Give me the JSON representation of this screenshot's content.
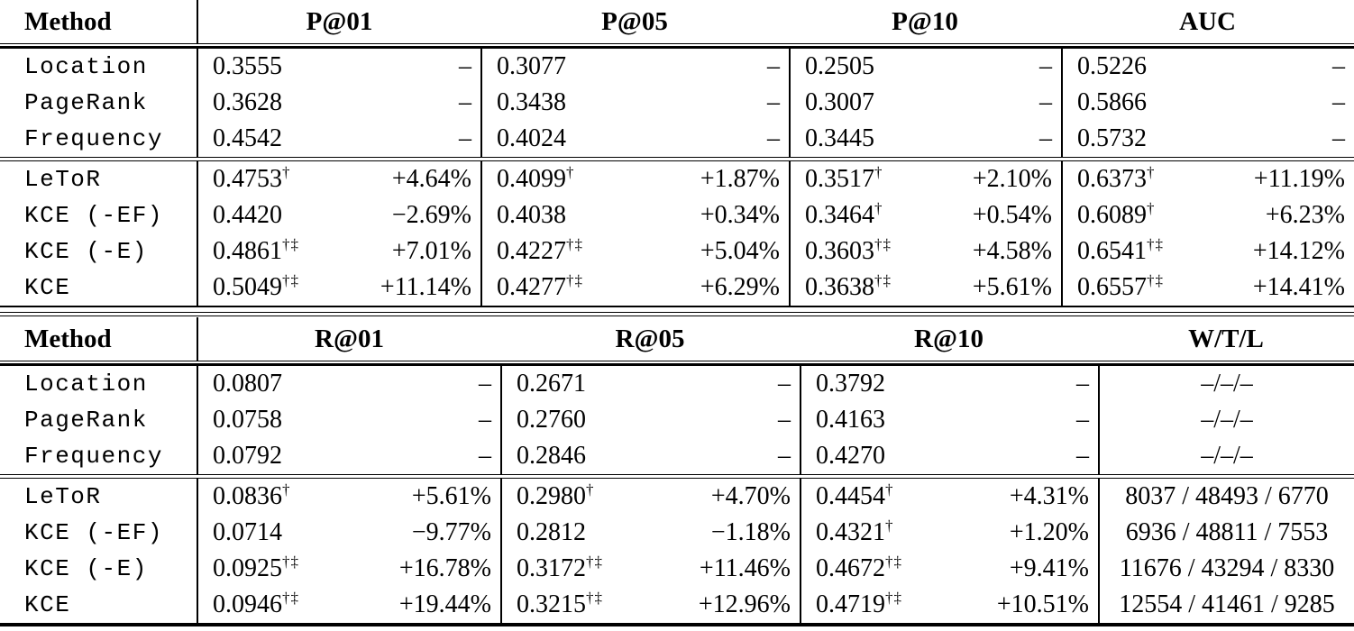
{
  "tables": [
    {
      "header": {
        "method": "Method",
        "cols": [
          "P@01",
          "P@05",
          "P@10",
          "AUC"
        ]
      },
      "baselines": [
        {
          "method": "Location",
          "cells": [
            {
              "v": "0.3555",
              "d": "–"
            },
            {
              "v": "0.3077",
              "d": "–"
            },
            {
              "v": "0.2505",
              "d": "–"
            },
            {
              "v": "0.5226",
              "d": "–"
            }
          ]
        },
        {
          "method": "PageRank",
          "cells": [
            {
              "v": "0.3628",
              "d": "–"
            },
            {
              "v": "0.3438",
              "d": "–"
            },
            {
              "v": "0.3007",
              "d": "–"
            },
            {
              "v": "0.5866",
              "d": "–"
            }
          ]
        },
        {
          "method": "Frequency",
          "cells": [
            {
              "v": "0.4542",
              "d": "–"
            },
            {
              "v": "0.4024",
              "d": "–"
            },
            {
              "v": "0.3445",
              "d": "–"
            },
            {
              "v": "0.5732",
              "d": "–"
            }
          ]
        }
      ],
      "methods": [
        {
          "method": "LeToR",
          "cells": [
            {
              "v": "0.4753",
              "sup": "†",
              "d": "+4.64%"
            },
            {
              "v": "0.4099",
              "sup": "†",
              "d": "+1.87%"
            },
            {
              "v": "0.3517",
              "sup": "†",
              "d": "+2.10%"
            },
            {
              "v": "0.6373",
              "sup": "†",
              "d": "+11.19%"
            }
          ]
        },
        {
          "method": "KCE (-EF)",
          "cells": [
            {
              "v": "0.4420",
              "d": "−2.69%"
            },
            {
              "v": "0.4038",
              "d": "+0.34%"
            },
            {
              "v": "0.3464",
              "sup": "†",
              "d": "+0.54%"
            },
            {
              "v": "0.6089",
              "sup": "†",
              "d": "+6.23%"
            }
          ]
        },
        {
          "method": "KCE (-E)",
          "cells": [
            {
              "v": "0.4861",
              "sup": "†‡",
              "d": "+7.01%"
            },
            {
              "v": "0.4227",
              "sup": "†‡",
              "d": "+5.04%"
            },
            {
              "v": "0.3603",
              "sup": "†‡",
              "d": "+4.58%"
            },
            {
              "v": "0.6541",
              "sup": "†‡",
              "d": "+14.12%"
            }
          ]
        },
        {
          "method": "KCE",
          "cells": [
            {
              "v": "0.5049",
              "sup": "†‡",
              "d": "+11.14%"
            },
            {
              "v": "0.4277",
              "sup": "†‡",
              "d": "+6.29%"
            },
            {
              "v": "0.3638",
              "sup": "†‡",
              "d": "+5.61%"
            },
            {
              "v": "0.6557",
              "sup": "†‡",
              "d": "+14.41%"
            }
          ]
        }
      ]
    },
    {
      "header": {
        "method": "Method",
        "cols": [
          "R@01",
          "R@05",
          "R@10",
          "W/T/L"
        ]
      },
      "baselines": [
        {
          "method": "Location",
          "cells": [
            {
              "v": "0.0807",
              "d": "–"
            },
            {
              "v": "0.2671",
              "d": "–"
            },
            {
              "v": "0.3792",
              "d": "–"
            },
            {
              "wtl": "–/–/–"
            }
          ]
        },
        {
          "method": "PageRank",
          "cells": [
            {
              "v": "0.0758",
              "d": "–"
            },
            {
              "v": "0.2760",
              "d": "–"
            },
            {
              "v": "0.4163",
              "d": "–"
            },
            {
              "wtl": "–/–/–"
            }
          ]
        },
        {
          "method": "Frequency",
          "cells": [
            {
              "v": "0.0792",
              "d": "–"
            },
            {
              "v": "0.2846",
              "d": "–"
            },
            {
              "v": "0.4270",
              "d": "–"
            },
            {
              "wtl": "–/–/–"
            }
          ]
        }
      ],
      "methods": [
        {
          "method": "LeToR",
          "cells": [
            {
              "v": "0.0836",
              "sup": "†",
              "d": "+5.61%"
            },
            {
              "v": "0.2980",
              "sup": "†",
              "d": "+4.70%"
            },
            {
              "v": "0.4454",
              "sup": "†",
              "d": "+4.31%"
            },
            {
              "wtl": "8037 / 48493 / 6770"
            }
          ]
        },
        {
          "method": "KCE (-EF)",
          "cells": [
            {
              "v": "0.0714",
              "d": "−9.77%"
            },
            {
              "v": "0.2812",
              "d": "−1.18%"
            },
            {
              "v": "0.4321",
              "sup": "†",
              "d": "+1.20%"
            },
            {
              "wtl": "6936 / 48811 / 7553"
            }
          ]
        },
        {
          "method": "KCE (-E)",
          "cells": [
            {
              "v": "0.0925",
              "sup": "†‡",
              "d": "+16.78%"
            },
            {
              "v": "0.3172",
              "sup": "†‡",
              "d": "+11.46%"
            },
            {
              "v": "0.4672",
              "sup": "†‡",
              "d": "+9.41%"
            },
            {
              "wtl": "11676 / 43294 / 8330"
            }
          ]
        },
        {
          "method": "KCE",
          "cells": [
            {
              "v": "0.0946",
              "sup": "†‡",
              "d": "+19.44%"
            },
            {
              "v": "0.3215",
              "sup": "†‡",
              "d": "+12.96%"
            },
            {
              "v": "0.4719",
              "sup": "†‡",
              "d": "+10.51%"
            },
            {
              "wtl": "12554 / 41461 / 9285"
            }
          ]
        }
      ]
    }
  ]
}
